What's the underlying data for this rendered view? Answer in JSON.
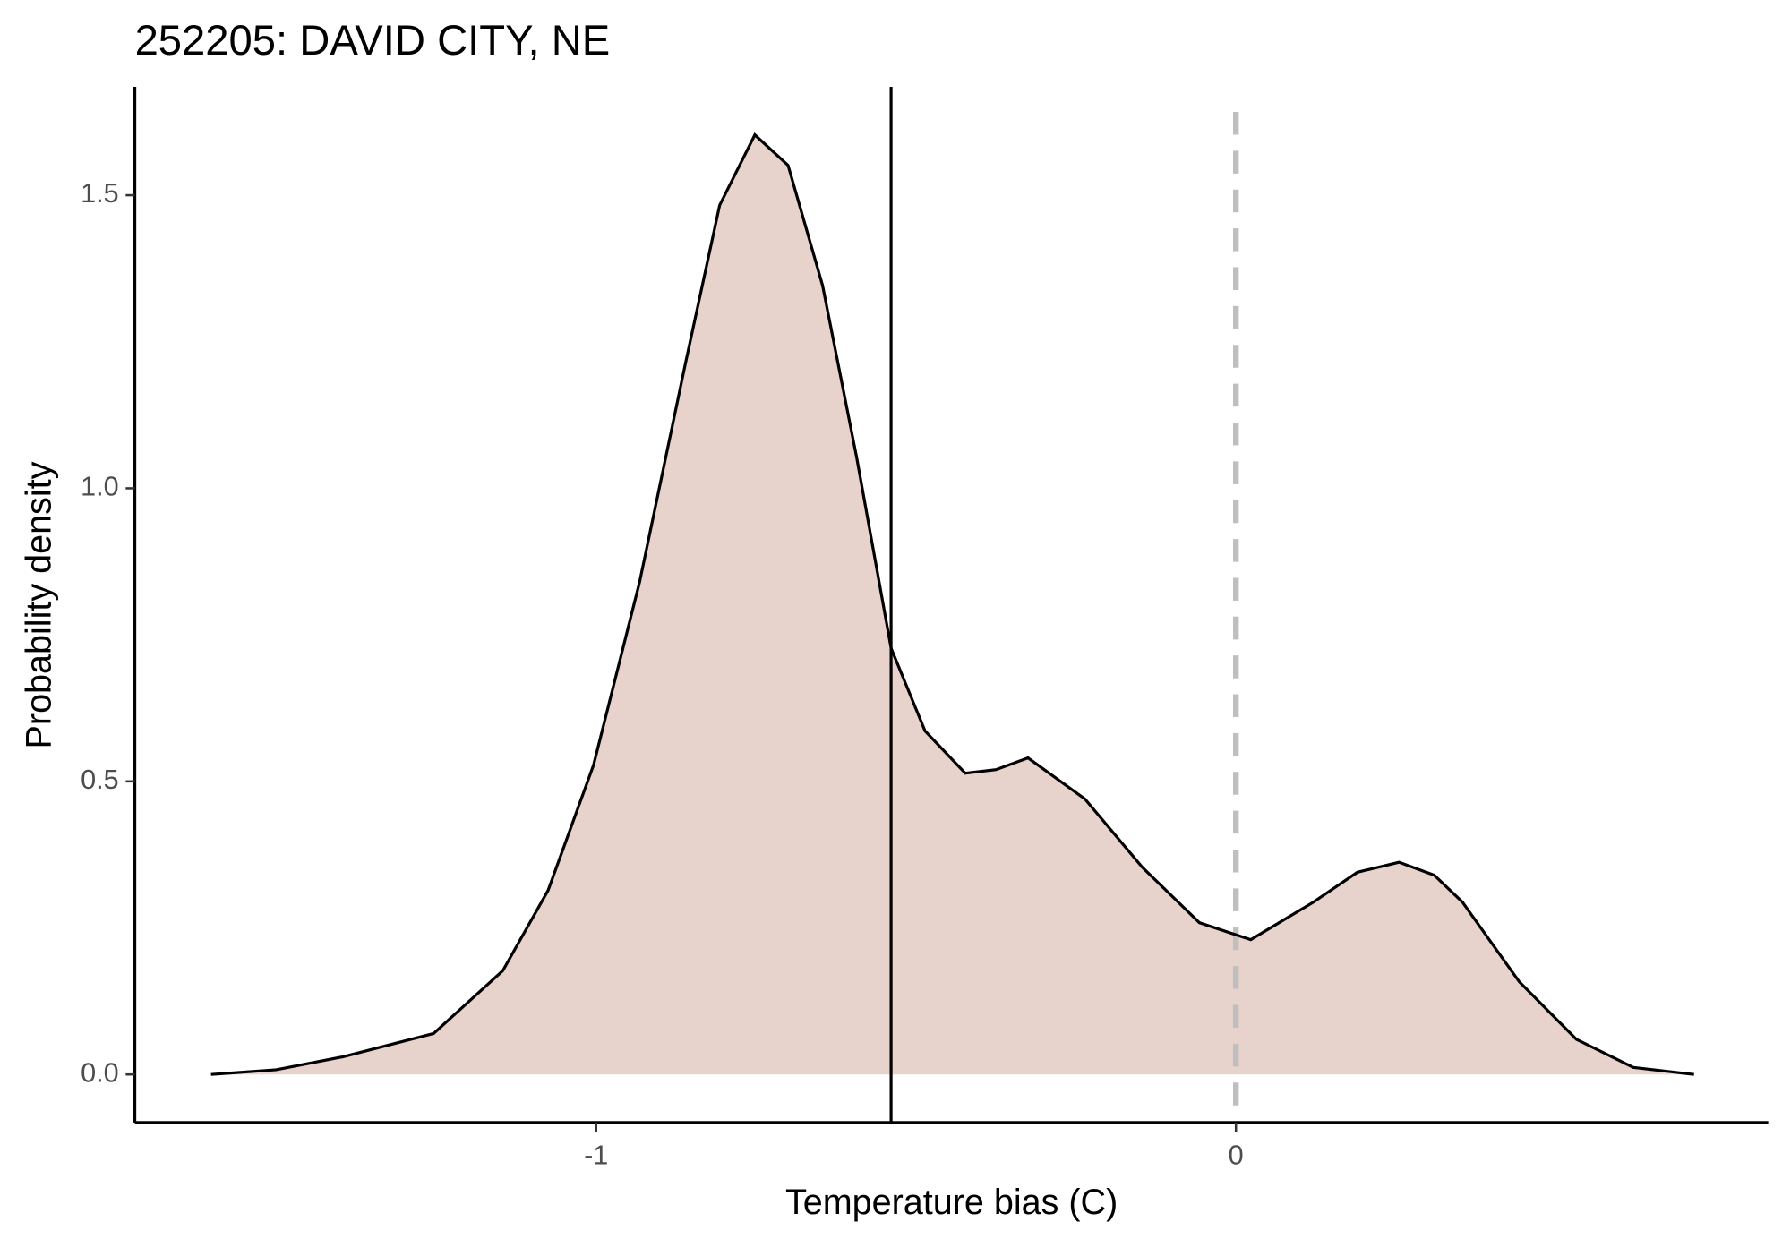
{
  "chart_data": {
    "type": "density",
    "title": "252205: DAVID CITY, NE",
    "x_label": "Temperature bias (C)",
    "y_label": "Probability density",
    "x": [
      -1.602,
      -1.5,
      -1.396,
      -1.254,
      -1.146,
      -1.075,
      -1.004,
      -0.932,
      -0.861,
      -0.807,
      -0.752,
      -0.7,
      -0.646,
      -0.593,
      -0.539,
      -0.486,
      -0.423,
      -0.375,
      -0.325,
      -0.236,
      -0.146,
      -0.057,
      0.023,
      0.121,
      0.19,
      0.255,
      0.31,
      0.354,
      0.443,
      0.532,
      0.621,
      0.716
    ],
    "values": [
      0,
      0.008,
      0.03,
      0.07,
      0.177,
      0.314,
      0.528,
      0.84,
      1.21,
      1.483,
      1.603,
      1.551,
      1.346,
      1.054,
      0.727,
      0.586,
      0.514,
      0.52,
      0.54,
      0.47,
      0.353,
      0.259,
      0.23,
      0.294,
      0.345,
      0.362,
      0.34,
      0.294,
      0.158,
      0.06,
      0.012,
      0
    ],
    "color": "#e8d2cc",
    "line_color": "#000000",
    "vlines": [
      {
        "x": -0.539,
        "style": "solid",
        "color": "#000000"
      },
      {
        "x": 0,
        "style": "dashed",
        "color": "#bfbfbf"
      }
    ],
    "xlim": [
      -1.721,
      0.832
    ],
    "ylim": [
      -0.082,
      1.685
    ],
    "xticks": [
      -1,
      0
    ],
    "yticks": [
      {
        "value": 0,
        "label": "0.0"
      },
      0.5,
      {
        "value": 1,
        "label": "1.0"
      },
      1.5
    ]
  }
}
